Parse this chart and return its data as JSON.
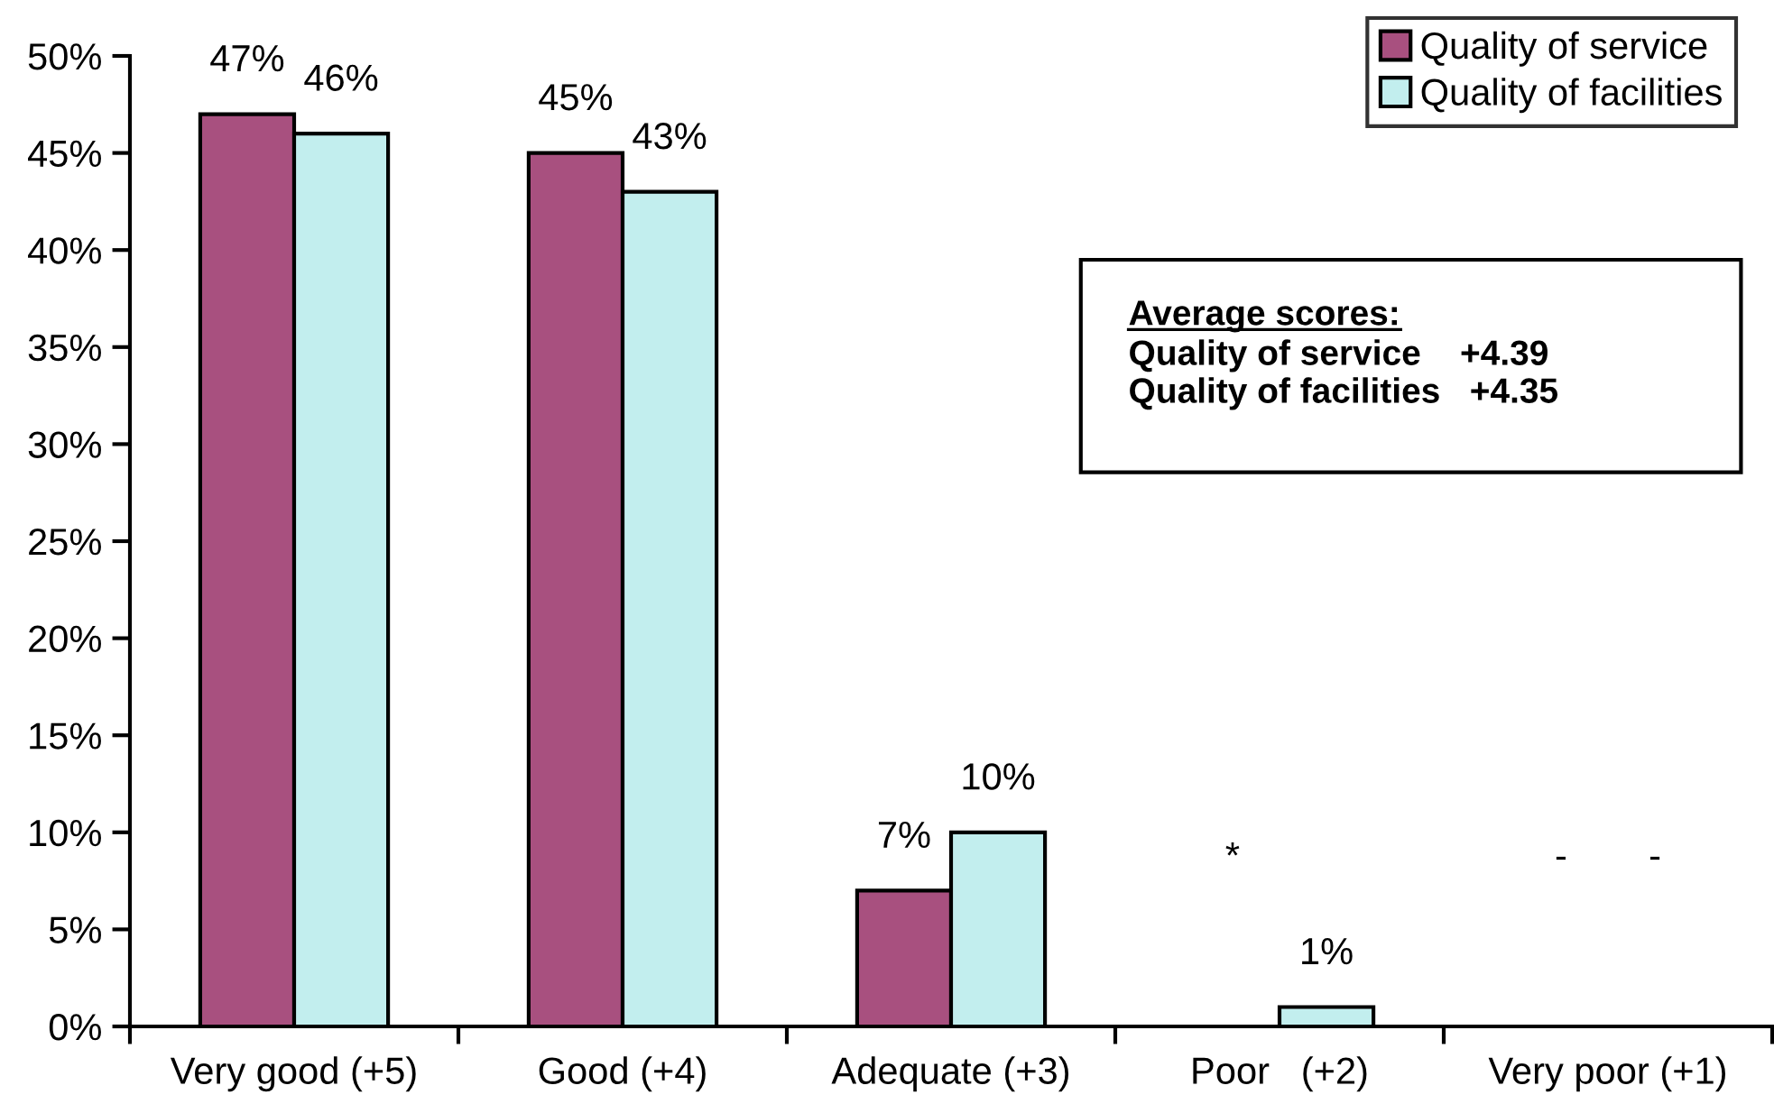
{
  "chart_data": {
    "type": "bar",
    "categories": [
      "Very good (+5)",
      "Good (+4)",
      "Adequate (+3)",
      "Poor   (+2)",
      "Very poor (+1)"
    ],
    "series": [
      {
        "name": "Quality of service",
        "color": "#a8507f",
        "values": [
          47,
          45,
          7,
          null,
          null
        ],
        "value_labels": [
          "47%",
          "45%",
          "7%",
          "*",
          "-"
        ]
      },
      {
        "name": "Quality of facilities",
        "color": "#c2eeee",
        "values": [
          46,
          43,
          10,
          1,
          null
        ],
        "value_labels": [
          "46%",
          "43%",
          "10%",
          "1%",
          "-"
        ]
      }
    ],
    "ylim": [
      0,
      50
    ],
    "yticks": [
      {
        "value": 0,
        "label": "0%"
      },
      {
        "value": 5,
        "label": "5%"
      },
      {
        "value": 10,
        "label": "10%"
      },
      {
        "value": 15,
        "label": "15%"
      },
      {
        "value": 20,
        "label": "20%"
      },
      {
        "value": 25,
        "label": "25%"
      },
      {
        "value": 30,
        "label": "30%"
      },
      {
        "value": 35,
        "label": "35%"
      },
      {
        "value": 40,
        "label": "40%"
      },
      {
        "value": 45,
        "label": "45%"
      },
      {
        "value": 50,
        "label": "50%"
      }
    ],
    "legend": "top right",
    "annotations": [
      "Average scores:",
      "Quality of service    +4.39",
      "Quality of facilities   +4.35"
    ]
  }
}
